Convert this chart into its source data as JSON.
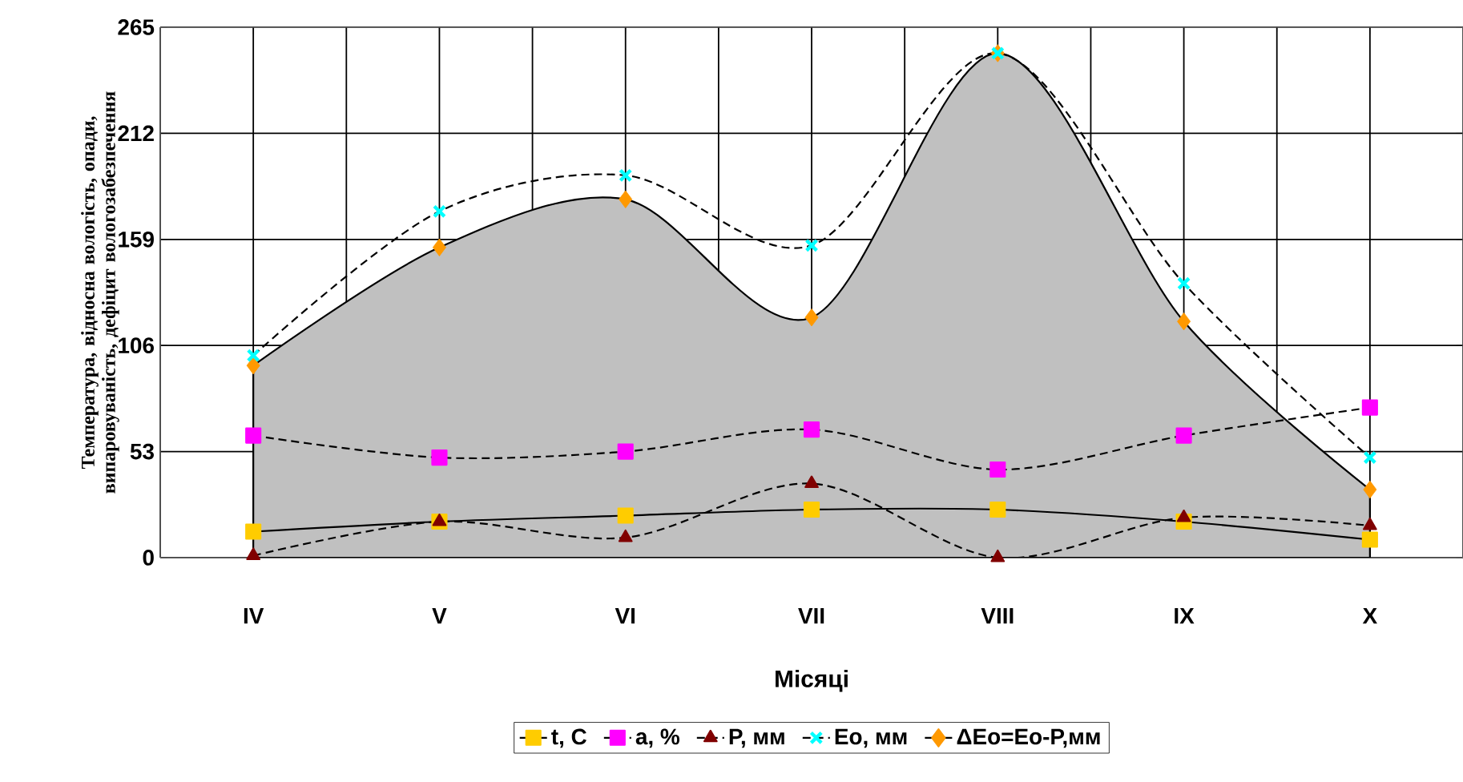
{
  "chart_data": {
    "type": "line",
    "xlabel": "Місяці",
    "ylabel": "Температура, відносна вологість, опади, випаровуваність, дефіцит вологозабезпечення",
    "categories": [
      "IV",
      "V",
      "VI",
      "VII",
      "VIII",
      "IX",
      "X"
    ],
    "ylim": [
      0,
      265
    ],
    "yticks": [
      0,
      53,
      106,
      159,
      212,
      265
    ],
    "grid": true,
    "legend": "bottom",
    "series": [
      {
        "name": "t, C",
        "color": "#ffcc00",
        "marker": "square",
        "line_style": "solid",
        "values": [
          13,
          18,
          21,
          24,
          24,
          18,
          9
        ]
      },
      {
        "name": "a, %",
        "color": "#ff00ff",
        "marker": "square",
        "line_style": "dashed",
        "values": [
          61,
          50,
          53,
          64,
          44,
          61,
          75
        ]
      },
      {
        "name": "P, мм",
        "color": "#800000",
        "marker": "triangle",
        "line_style": "dashed",
        "values": [
          1,
          18,
          10,
          37,
          0,
          20,
          16
        ]
      },
      {
        "name": "Eo, мм",
        "color": "#00ffff",
        "marker": "cross",
        "line_style": "dashed",
        "values": [
          101,
          173,
          191,
          156,
          252,
          137,
          50
        ]
      },
      {
        "name": "ΔEo=Eo-P,мм",
        "type": "area",
        "color": "#c0c0c0",
        "colors": [
          "#ff9900",
          "#ff9900",
          "#ff9900",
          "#ff9900",
          "#ff9900",
          "#ff9900",
          "#ff9900"
        ],
        "marker": "diamond",
        "line_style": "solid",
        "values": [
          96,
          155,
          179,
          120,
          252,
          118,
          34
        ]
      }
    ]
  }
}
